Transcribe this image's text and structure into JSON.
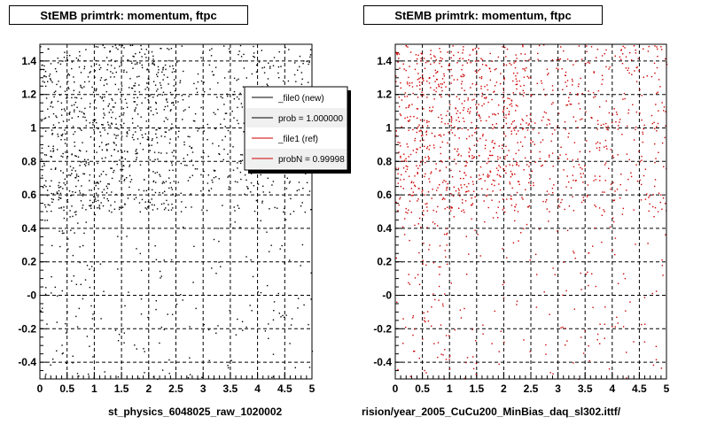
{
  "canvas_footer": "",
  "panels": [
    {
      "title": "StEMB primtrk: momentum, ftpc",
      "footer": "st_physics_6048025_raw_1020002",
      "point_color": "#000000",
      "legend": {
        "entries": [
          {
            "label": "_file0 (new)",
            "color": "#000000"
          },
          {
            "label": "prob = 1.000000",
            "color": "#000000"
          },
          {
            "label": "_file1 (ref)",
            "color": "#cc0000"
          },
          {
            "label": "probN = 0.99998",
            "color": "#cc0000"
          }
        ]
      }
    },
    {
      "title": "StEMB primtrk: momentum, ftpc",
      "footer": "rision/year_2005_CuCu200_MinBias_daq_sl302.ittf/",
      "point_color": "#cc0000"
    }
  ],
  "chart_data": [
    {
      "type": "scatter",
      "title": "StEMB primtrk: momentum, ftpc",
      "xlim": [
        0,
        5
      ],
      "ylim": [
        -0.5,
        1.5
      ],
      "x_ticks": [
        "0",
        "0.5",
        "1",
        "1.5",
        "2",
        "2.5",
        "3",
        "3.5",
        "4",
        "4.5",
        "5"
      ],
      "y_ticks": [
        "-0.4",
        "-0.2",
        "-0",
        "0.2",
        "0.4",
        "0.6",
        "0.8",
        "1",
        "1.2",
        "1.4"
      ],
      "grid": true,
      "legend_position": "top-right",
      "series": [
        {
          "name": "_file0 (new)",
          "color": "#000000",
          "density_note": "dense for y>0.5 and x<2.5, sparse below"
        }
      ]
    },
    {
      "type": "scatter",
      "title": "StEMB primtrk: momentum, ftpc",
      "xlim": [
        0,
        5
      ],
      "ylim": [
        -0.5,
        1.5
      ],
      "x_ticks": [
        "0",
        "0.5",
        "1",
        "1.5",
        "2",
        "2.5",
        "3",
        "3.5",
        "4",
        "4.5",
        "5"
      ],
      "y_ticks": [
        "-0.4",
        "-0.2",
        "-0",
        "0.2",
        "0.4",
        "0.6",
        "0.8",
        "1",
        "1.2",
        "1.4"
      ],
      "grid": true,
      "series": [
        {
          "name": "_file1 (ref)",
          "color": "#cc0000",
          "density_note": "dense for y>0.5 and x<2.5, sparse below"
        }
      ]
    }
  ]
}
